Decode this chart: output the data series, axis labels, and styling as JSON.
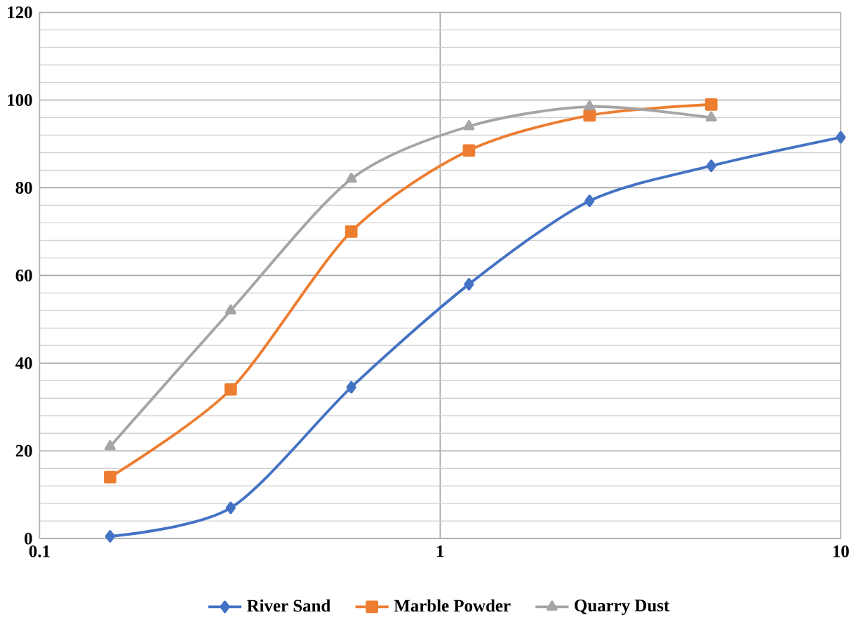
{
  "chart_data": {
    "type": "line",
    "log": "x",
    "xlim": [
      0.1,
      10
    ],
    "xticks": [
      0.1,
      1,
      10
    ],
    "ylim": [
      0,
      120
    ],
    "yticks": [
      0,
      20,
      40,
      60,
      80,
      100,
      120
    ],
    "grid": true,
    "legend": "bottom",
    "series": [
      {
        "name": "River Sand",
        "color": "#4472c4",
        "marker": "diamond",
        "x": [
          0.15,
          0.3,
          0.6,
          1.18,
          2.36,
          4.75,
          10
        ],
        "values": [
          0.5,
          7,
          34.5,
          58,
          77,
          85,
          91.5
        ]
      },
      {
        "name": "Marble Powder",
        "color": "#ed7d31",
        "marker": "square",
        "x": [
          0.15,
          0.3,
          0.6,
          1.18,
          2.36,
          4.75
        ],
        "values": [
          14,
          34,
          70,
          88.5,
          96.5,
          99
        ]
      },
      {
        "name": "Quarry Dust",
        "color": "#a5a5a5",
        "marker": "triangle",
        "x": [
          0.15,
          0.3,
          0.6,
          1.18,
          2.36,
          4.75
        ],
        "values": [
          21,
          52,
          82,
          94,
          98.5,
          96
        ]
      }
    ]
  }
}
